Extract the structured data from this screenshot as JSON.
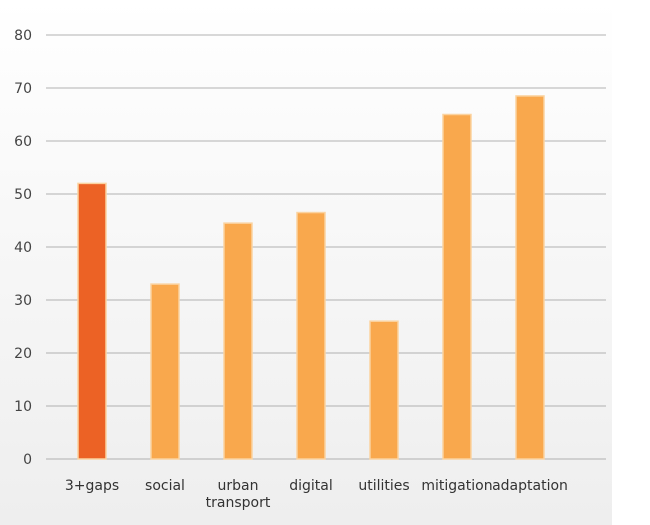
{
  "chart_data": {
    "type": "bar",
    "categories": [
      [
        "3+gaps"
      ],
      [
        "social"
      ],
      [
        "urban",
        "transport"
      ],
      [
        "digital"
      ],
      [
        "utilities"
      ],
      [
        "mitigation"
      ],
      [
        "adaptation"
      ]
    ],
    "values": [
      52,
      33,
      44.5,
      46.5,
      26,
      65,
      68.5
    ],
    "highlight_index": 0,
    "ylim": [
      0,
      80
    ],
    "yticks": [
      0,
      10,
      20,
      30,
      40,
      50,
      60,
      70,
      80
    ],
    "grid": true,
    "title": "",
    "xlabel": "",
    "ylabel": "",
    "colors": {
      "highlight_bar": "#ec6225",
      "bar": "#f9a84d",
      "bar_edge": "#fbd3a0",
      "plot_background_top": "#ffffff",
      "plot_background_bottom": "#eeeeee"
    }
  }
}
